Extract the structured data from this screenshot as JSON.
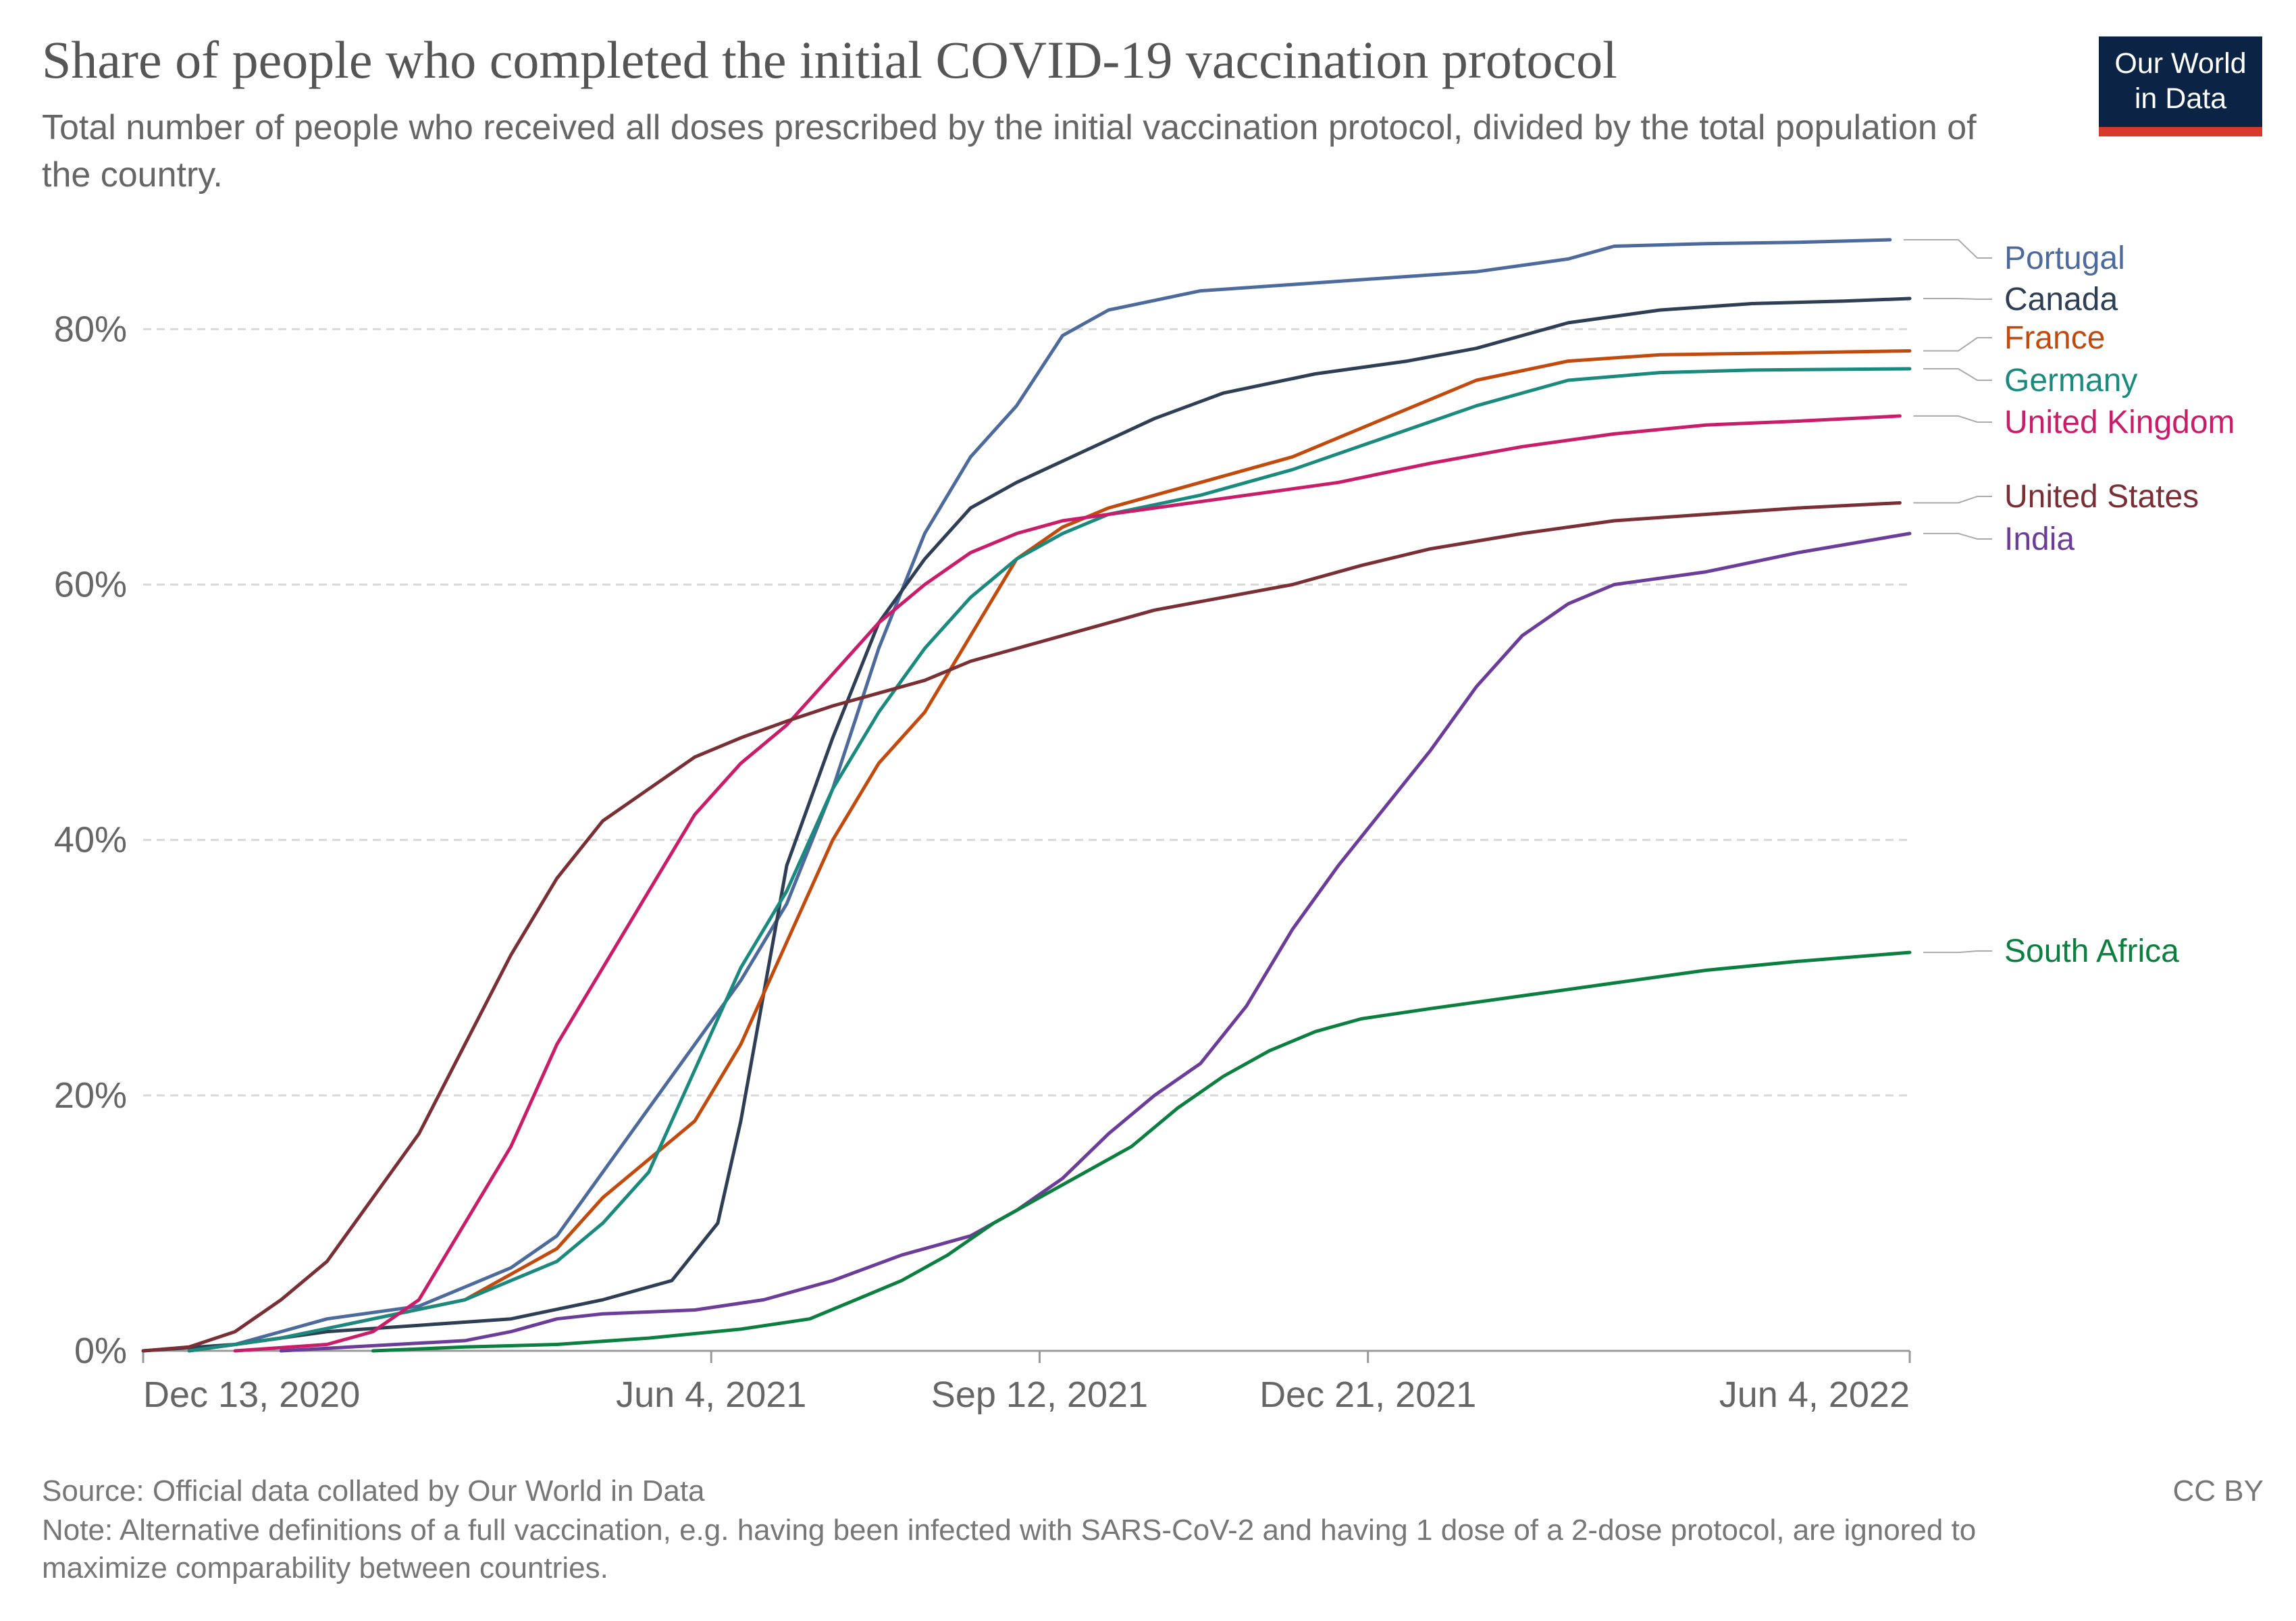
{
  "header": {
    "title": "Share of people who completed the initial COVID-19 vaccination protocol",
    "subtitle": "Total number of people who received all doses prescribed by the initial vaccination protocol, divided by the total population of the country."
  },
  "logo": {
    "text": "Our World\nin Data",
    "bg": "#0b2345",
    "accent": "#d73a2c"
  },
  "footer": {
    "source": "Source: Official data collated by Our World in Data",
    "note": "Note: Alternative definitions of a full vaccination, e.g. having been infected with SARS-CoV-2 and having 1 dose of a 2-dose protocol, are ignored to maximize comparability between countries.",
    "license": "CC BY"
  },
  "chart_data": {
    "type": "line",
    "title": "Share of people who completed the initial COVID-19 vaccination protocol",
    "xlabel": "",
    "ylabel": "",
    "xlim": [
      "2020-12-13",
      "2022-06-04"
    ],
    "ylim": [
      0,
      87
    ],
    "y_ticks": [
      0,
      20,
      40,
      60,
      80
    ],
    "y_tick_labels": [
      "0%",
      "20%",
      "40%",
      "60%",
      "80%"
    ],
    "x_ticks": [
      "2020-12-13",
      "2021-06-04",
      "2021-09-12",
      "2021-12-21",
      "2022-06-04"
    ],
    "x_tick_labels": [
      "Dec 13, 2020",
      "Jun 4, 2021",
      "Sep 12, 2021",
      "Dec 21, 2021",
      "Jun 4, 2022"
    ],
    "grid": "horizontal dashed",
    "legend": "right, end-of-line labels",
    "series": [
      {
        "name": "Portugal",
        "color": "#4c6a9c",
        "points": [
          [
            "2020-12-27",
            0
          ],
          [
            "2021-01-10",
            0.5
          ],
          [
            "2021-01-24",
            1.5
          ],
          [
            "2021-02-07",
            2.5
          ],
          [
            "2021-03-07",
            3.5
          ],
          [
            "2021-03-21",
            5
          ],
          [
            "2021-04-04",
            6.5
          ],
          [
            "2021-04-18",
            9
          ],
          [
            "2021-05-02",
            14
          ],
          [
            "2021-05-16",
            19
          ],
          [
            "2021-05-30",
            24
          ],
          [
            "2021-06-13",
            29
          ],
          [
            "2021-06-27",
            35
          ],
          [
            "2021-07-11",
            44
          ],
          [
            "2021-07-25",
            55
          ],
          [
            "2021-08-08",
            64
          ],
          [
            "2021-08-22",
            70
          ],
          [
            "2021-09-05",
            74
          ],
          [
            "2021-09-19",
            79.5
          ],
          [
            "2021-10-03",
            81.5
          ],
          [
            "2021-10-31",
            83
          ],
          [
            "2021-11-28",
            83.5
          ],
          [
            "2021-12-26",
            84
          ],
          [
            "2022-01-23",
            84.5
          ],
          [
            "2022-02-20",
            85.5
          ],
          [
            "2022-03-06",
            86.5
          ],
          [
            "2022-04-03",
            86.7
          ],
          [
            "2022-05-01",
            86.8
          ],
          [
            "2022-05-29",
            87
          ]
        ]
      },
      {
        "name": "Canada",
        "color": "#2d3e55",
        "points": [
          [
            "2020-12-13",
            0
          ],
          [
            "2021-01-10",
            0.5
          ],
          [
            "2021-02-07",
            1.5
          ],
          [
            "2021-03-07",
            2
          ],
          [
            "2021-04-04",
            2.5
          ],
          [
            "2021-05-02",
            4
          ],
          [
            "2021-05-23",
            5.5
          ],
          [
            "2021-06-06",
            10
          ],
          [
            "2021-06-13",
            18
          ],
          [
            "2021-06-20",
            28
          ],
          [
            "2021-06-27",
            38
          ],
          [
            "2021-07-11",
            48
          ],
          [
            "2021-07-25",
            57
          ],
          [
            "2021-08-08",
            62
          ],
          [
            "2021-08-22",
            66
          ],
          [
            "2021-09-05",
            68
          ],
          [
            "2021-09-26",
            70.5
          ],
          [
            "2021-10-17",
            73
          ],
          [
            "2021-11-07",
            75
          ],
          [
            "2021-12-05",
            76.5
          ],
          [
            "2022-01-02",
            77.5
          ],
          [
            "2022-01-23",
            78.5
          ],
          [
            "2022-02-20",
            80.5
          ],
          [
            "2022-03-20",
            81.5
          ],
          [
            "2022-04-17",
            82
          ],
          [
            "2022-05-15",
            82.2
          ],
          [
            "2022-06-04",
            82.4
          ]
        ]
      },
      {
        "name": "France",
        "color": "#c24a0d",
        "points": [
          [
            "2020-12-27",
            0
          ],
          [
            "2021-01-24",
            1
          ],
          [
            "2021-02-21",
            2.5
          ],
          [
            "2021-03-21",
            4
          ],
          [
            "2021-04-18",
            8
          ],
          [
            "2021-05-02",
            12
          ],
          [
            "2021-05-16",
            15
          ],
          [
            "2021-05-30",
            18
          ],
          [
            "2021-06-13",
            24
          ],
          [
            "2021-06-27",
            32
          ],
          [
            "2021-07-11",
            40
          ],
          [
            "2021-07-25",
            46
          ],
          [
            "2021-08-08",
            50
          ],
          [
            "2021-08-22",
            56
          ],
          [
            "2021-09-05",
            62
          ],
          [
            "2021-09-19",
            64.5
          ],
          [
            "2021-10-03",
            66
          ],
          [
            "2021-10-31",
            68
          ],
          [
            "2021-11-28",
            70
          ],
          [
            "2021-12-26",
            73
          ],
          [
            "2022-01-23",
            76
          ],
          [
            "2022-02-20",
            77.5
          ],
          [
            "2022-03-20",
            78
          ],
          [
            "2022-04-17",
            78.1
          ],
          [
            "2022-06-04",
            78.3
          ]
        ]
      },
      {
        "name": "Germany",
        "color": "#1b8a7e",
        "points": [
          [
            "2020-12-27",
            0
          ],
          [
            "2021-01-24",
            1
          ],
          [
            "2021-02-21",
            2.5
          ],
          [
            "2021-03-21",
            4
          ],
          [
            "2021-04-18",
            7
          ],
          [
            "2021-05-02",
            10
          ],
          [
            "2021-05-16",
            14
          ],
          [
            "2021-05-30",
            22
          ],
          [
            "2021-06-13",
            30
          ],
          [
            "2021-06-27",
            36
          ],
          [
            "2021-07-11",
            44
          ],
          [
            "2021-07-25",
            50
          ],
          [
            "2021-08-08",
            55
          ],
          [
            "2021-08-22",
            59
          ],
          [
            "2021-09-05",
            62
          ],
          [
            "2021-09-19",
            64
          ],
          [
            "2021-10-03",
            65.5
          ],
          [
            "2021-10-31",
            67
          ],
          [
            "2021-11-28",
            69
          ],
          [
            "2021-12-26",
            71.5
          ],
          [
            "2022-01-23",
            74
          ],
          [
            "2022-02-20",
            76
          ],
          [
            "2022-03-20",
            76.6
          ],
          [
            "2022-04-17",
            76.8
          ],
          [
            "2022-06-04",
            76.9
          ]
        ]
      },
      {
        "name": "United Kingdom",
        "color": "#c91d6a",
        "points": [
          [
            "2021-01-10",
            0
          ],
          [
            "2021-02-07",
            0.5
          ],
          [
            "2021-02-21",
            1.5
          ],
          [
            "2021-03-07",
            4
          ],
          [
            "2021-03-21",
            10
          ],
          [
            "2021-04-04",
            16
          ],
          [
            "2021-04-18",
            24
          ],
          [
            "2021-05-02",
            30
          ],
          [
            "2021-05-16",
            36
          ],
          [
            "2021-05-30",
            42
          ],
          [
            "2021-06-13",
            46
          ],
          [
            "2021-06-27",
            49
          ],
          [
            "2021-07-11",
            53
          ],
          [
            "2021-07-25",
            57
          ],
          [
            "2021-08-08",
            60
          ],
          [
            "2021-08-22",
            62.5
          ],
          [
            "2021-09-05",
            64
          ],
          [
            "2021-09-19",
            65
          ],
          [
            "2021-10-17",
            66
          ],
          [
            "2021-11-14",
            67
          ],
          [
            "2021-12-12",
            68
          ],
          [
            "2022-01-09",
            69.5
          ],
          [
            "2022-02-06",
            70.8
          ],
          [
            "2022-03-06",
            71.8
          ],
          [
            "2022-04-03",
            72.5
          ],
          [
            "2022-05-01",
            72.8
          ],
          [
            "2022-06-01",
            73.2
          ]
        ]
      },
      {
        "name": "United States",
        "color": "#7a2f35",
        "points": [
          [
            "2020-12-13",
            0
          ],
          [
            "2020-12-27",
            0.3
          ],
          [
            "2021-01-10",
            1.5
          ],
          [
            "2021-01-24",
            4
          ],
          [
            "2021-02-07",
            7
          ],
          [
            "2021-02-21",
            12
          ],
          [
            "2021-03-07",
            17
          ],
          [
            "2021-03-21",
            24
          ],
          [
            "2021-04-04",
            31
          ],
          [
            "2021-04-18",
            37
          ],
          [
            "2021-05-02",
            41.5
          ],
          [
            "2021-05-16",
            44
          ],
          [
            "2021-05-30",
            46.5
          ],
          [
            "2021-06-13",
            48
          ],
          [
            "2021-06-27",
            49.3
          ],
          [
            "2021-07-11",
            50.5
          ],
          [
            "2021-07-25",
            51.5
          ],
          [
            "2021-08-08",
            52.5
          ],
          [
            "2021-08-22",
            54
          ],
          [
            "2021-09-05",
            55
          ],
          [
            "2021-09-26",
            56.5
          ],
          [
            "2021-10-17",
            58
          ],
          [
            "2021-11-07",
            59
          ],
          [
            "2021-11-28",
            60
          ],
          [
            "2021-12-19",
            61.5
          ],
          [
            "2022-01-09",
            62.8
          ],
          [
            "2022-02-06",
            64
          ],
          [
            "2022-03-06",
            65
          ],
          [
            "2022-04-03",
            65.5
          ],
          [
            "2022-05-01",
            66
          ],
          [
            "2022-06-01",
            66.4
          ]
        ]
      },
      {
        "name": "India",
        "color": "#6b3d99",
        "points": [
          [
            "2021-01-24",
            0
          ],
          [
            "2021-02-21",
            0.4
          ],
          [
            "2021-03-21",
            0.8
          ],
          [
            "2021-04-04",
            1.5
          ],
          [
            "2021-04-18",
            2.5
          ],
          [
            "2021-05-02",
            2.9
          ],
          [
            "2021-05-30",
            3.2
          ],
          [
            "2021-06-20",
            4
          ],
          [
            "2021-07-11",
            5.5
          ],
          [
            "2021-08-01",
            7.5
          ],
          [
            "2021-08-22",
            9
          ],
          [
            "2021-09-05",
            11
          ],
          [
            "2021-09-19",
            13.5
          ],
          [
            "2021-10-03",
            17
          ],
          [
            "2021-10-17",
            20
          ],
          [
            "2021-10-31",
            22.5
          ],
          [
            "2021-11-14",
            27
          ],
          [
            "2021-11-28",
            33
          ],
          [
            "2021-12-12",
            38
          ],
          [
            "2021-12-26",
            42.5
          ],
          [
            "2022-01-09",
            47
          ],
          [
            "2022-01-23",
            52
          ],
          [
            "2022-02-06",
            56
          ],
          [
            "2022-02-20",
            58.5
          ],
          [
            "2022-03-06",
            60
          ],
          [
            "2022-04-03",
            61
          ],
          [
            "2022-05-01",
            62.5
          ],
          [
            "2022-06-04",
            64
          ]
        ]
      },
      {
        "name": "South Africa",
        "color": "#0b7f3f",
        "points": [
          [
            "2021-02-21",
            0
          ],
          [
            "2021-03-21",
            0.3
          ],
          [
            "2021-04-18",
            0.5
          ],
          [
            "2021-05-16",
            1
          ],
          [
            "2021-06-13",
            1.7
          ],
          [
            "2021-07-04",
            2.5
          ],
          [
            "2021-07-18",
            4
          ],
          [
            "2021-08-01",
            5.5
          ],
          [
            "2021-08-15",
            7.5
          ],
          [
            "2021-08-29",
            10
          ],
          [
            "2021-09-12",
            12
          ],
          [
            "2021-09-26",
            14
          ],
          [
            "2021-10-10",
            16
          ],
          [
            "2021-10-24",
            19
          ],
          [
            "2021-11-07",
            21.5
          ],
          [
            "2021-11-21",
            23.5
          ],
          [
            "2021-12-05",
            25
          ],
          [
            "2021-12-19",
            26
          ],
          [
            "2022-01-09",
            26.8
          ],
          [
            "2022-02-06",
            27.8
          ],
          [
            "2022-03-06",
            28.8
          ],
          [
            "2022-04-03",
            29.8
          ],
          [
            "2022-05-01",
            30.5
          ],
          [
            "2022-06-04",
            31.2
          ]
        ]
      }
    ]
  }
}
